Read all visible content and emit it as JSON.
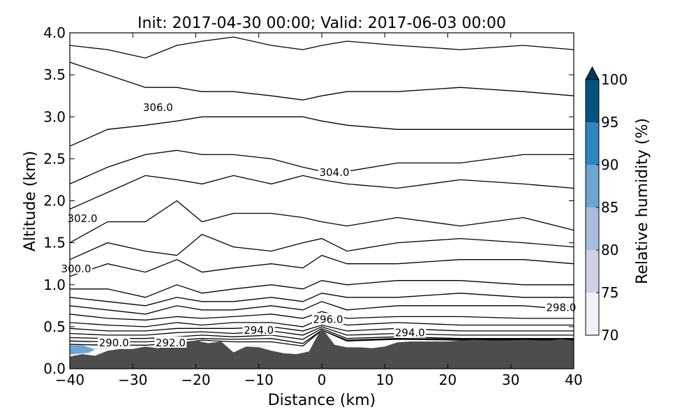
{
  "chart_data": [
    {
      "type": "contour",
      "title": "Init: 2017-04-30 00:00; Valid: 2017-06-03 00:00",
      "xlabel": "Distance (km)",
      "ylabel": "Altitude (km)",
      "xlim": [
        -40,
        40
      ],
      "ylim": [
        0.0,
        4.0
      ],
      "x_ticks": [
        -40,
        -30,
        -20,
        -10,
        0,
        10,
        20,
        30,
        40
      ],
      "x_tick_labels": [
        "−40",
        "−30",
        "−20",
        "−10",
        "0",
        "10",
        "20",
        "30",
        "40"
      ],
      "y_ticks": [
        0.0,
        0.5,
        1.0,
        1.5,
        2.0,
        2.5,
        3.0,
        3.5,
        4.0
      ],
      "y_tick_labels": [
        "0.0",
        "0.5",
        "1.0",
        "1.5",
        "2.0",
        "2.5",
        "3.0",
        "3.5",
        "4.0"
      ],
      "grid": false,
      "terrain": {
        "color": "#4d4d4d",
        "x": [
          -40,
          -38,
          -36,
          -34,
          -32,
          -30,
          -28,
          -26,
          -24,
          -22,
          -20,
          -18,
          -16,
          -14,
          -12,
          -10,
          -8,
          -6,
          -4,
          -2,
          0,
          2,
          4,
          6,
          8,
          10,
          12,
          14,
          16,
          20,
          24,
          28,
          32,
          36,
          38,
          40
        ],
        "height_km": [
          0.14,
          0.17,
          0.15,
          0.21,
          0.23,
          0.23,
          0.26,
          0.24,
          0.27,
          0.3,
          0.33,
          0.3,
          0.32,
          0.19,
          0.26,
          0.25,
          0.21,
          0.18,
          0.17,
          0.2,
          0.48,
          0.28,
          0.25,
          0.25,
          0.24,
          0.26,
          0.31,
          0.32,
          0.32,
          0.32,
          0.34,
          0.33,
          0.34,
          0.33,
          0.35,
          0.33
        ]
      },
      "humidity_patches": [
        {
          "x": [
            -40,
            -37,
            -34,
            -37,
            -40
          ],
          "z": [
            0.15,
            0.18,
            0.25,
            0.32,
            0.33
          ],
          "level": "70-75"
        },
        {
          "x": [
            -40,
            -37,
            -36,
            -38,
            -40
          ],
          "z": [
            0.17,
            0.19,
            0.23,
            0.28,
            0.28
          ],
          "level": "85-90"
        },
        {
          "x": [
            -12,
            -10,
            -8,
            -11
          ],
          "z": [
            0.24,
            0.22,
            0.27,
            0.29
          ],
          "level": "70-75"
        }
      ],
      "contour_series": [
        {
          "z_km": [
            3.85,
            3.8,
            3.7,
            3.85,
            3.9,
            3.95,
            3.85,
            3.8,
            3.85,
            3.9,
            3.85,
            3.8,
            3.85,
            3.8
          ]
        },
        {
          "z_km": [
            3.65,
            3.5,
            3.35,
            3.35,
            3.3,
            3.3,
            3.25,
            3.2,
            3.25,
            3.3,
            3.3,
            3.35,
            3.3,
            3.25
          ],
          "label": "306.0",
          "label_x": -26,
          "label_z": 3.1
        },
        {
          "z_km": [
            2.65,
            2.85,
            2.9,
            2.95,
            3.0,
            3.0,
            3.0,
            3.0,
            2.95,
            2.9,
            2.85,
            2.85,
            2.85,
            2.85
          ]
        },
        {
          "z_km": [
            2.2,
            2.4,
            2.55,
            2.6,
            2.55,
            2.55,
            2.5,
            2.4,
            2.35,
            2.35,
            2.45,
            2.45,
            2.55,
            2.55
          ]
        },
        {
          "z_km": [
            1.9,
            2.1,
            2.3,
            2.25,
            2.2,
            2.3,
            2.2,
            2.3,
            2.25,
            2.2,
            2.15,
            2.25,
            2.2,
            2.15
          ],
          "label": "304.0",
          "label_x": 2,
          "label_z": 2.33
        },
        {
          "z_km": [
            1.5,
            1.75,
            1.75,
            2.0,
            1.75,
            1.85,
            1.85,
            1.8,
            1.75,
            1.7,
            1.8,
            1.7,
            1.8,
            1.65
          ],
          "label": "302.0",
          "label_x": -38,
          "label_z": 1.78
        },
        {
          "z_km": [
            1.3,
            1.5,
            1.4,
            1.35,
            1.6,
            1.45,
            1.4,
            1.5,
            1.55,
            1.4,
            1.5,
            1.55,
            1.5,
            1.45
          ]
        },
        {
          "z_km": [
            1.1,
            1.25,
            1.15,
            1.3,
            1.15,
            1.2,
            1.25,
            1.2,
            1.35,
            1.25,
            1.25,
            1.3,
            1.3,
            1.25
          ],
          "label": "300.0",
          "label_x": -39,
          "label_z": 1.18
        },
        {
          "z_km": [
            0.95,
            0.95,
            0.85,
            1.0,
            0.9,
            0.95,
            1.0,
            0.95,
            1.05,
            1.0,
            1.05,
            1.05,
            1.0,
            1.0
          ]
        },
        {
          "z_km": [
            0.85,
            0.8,
            0.75,
            0.85,
            0.8,
            0.8,
            0.85,
            0.8,
            0.9,
            0.85,
            0.85,
            0.9,
            0.85,
            0.85
          ]
        },
        {
          "z_km": [
            0.75,
            0.7,
            0.65,
            0.75,
            0.7,
            0.7,
            0.75,
            0.7,
            0.8,
            0.7,
            0.75,
            0.75,
            0.75,
            0.7
          ],
          "label": "298.0",
          "label_x": 38,
          "label_z": 0.72
        },
        {
          "z_km": [
            0.65,
            0.6,
            0.58,
            0.62,
            0.6,
            0.62,
            0.65,
            0.6,
            0.68,
            0.6,
            0.62,
            0.62,
            0.6,
            0.6
          ]
        },
        {
          "z_km": [
            0.55,
            0.52,
            0.5,
            0.55,
            0.52,
            0.55,
            0.55,
            0.5,
            0.6,
            0.52,
            0.55,
            0.52,
            0.52,
            0.52
          ],
          "label": "296.0",
          "label_x": 1,
          "label_z": 0.58
        },
        {
          "z_km": [
            0.48,
            0.45,
            0.45,
            0.48,
            0.48,
            0.48,
            0.5,
            0.45,
            0.52,
            0.45,
            0.48,
            0.45,
            0.45,
            0.45
          ]
        },
        {
          "z_km": [
            0.42,
            0.4,
            0.4,
            0.43,
            0.44,
            0.42,
            0.45,
            0.4,
            0.5,
            0.4,
            0.42,
            0.4,
            0.4,
            0.4
          ],
          "label": "294.0",
          "label_x": -10,
          "label_z": 0.45
        },
        {
          "z_km": [
            0.37,
            0.36,
            0.36,
            0.38,
            0.4,
            0.38,
            0.4,
            0.35,
            0.48,
            0.36,
            0.38,
            0.36,
            0.36,
            0.36
          ],
          "label": "294.0",
          "label_x": 14,
          "label_z": 0.42
        },
        {
          "z_km": [
            0.33,
            0.32,
            0.32,
            0.34,
            0.36,
            0.35,
            0.36,
            0.3,
            0.46,
            0.34,
            0.36,
            0.35,
            0.35,
            0.35
          ],
          "label": "292.0",
          "label_x": -24,
          "label_z": 0.3
        },
        {
          "z_km": [
            0.29,
            0.28,
            0.28,
            0.3,
            0.34,
            0.32,
            0.32,
            0.27,
            0.46,
            0.33,
            0.35,
            0.34,
            0.34,
            0.34
          ],
          "label": "290.0",
          "label_x": -33,
          "label_z": 0.3
        }
      ],
      "contour_x": [
        -40,
        -34,
        -28,
        -23,
        -19,
        -14,
        -8,
        -3,
        0,
        4,
        12,
        22,
        32,
        40
      ]
    },
    {
      "type": "colorbar",
      "label": "Relative humidity (%)",
      "ticks": [
        70,
        75,
        80,
        85,
        90,
        95,
        100
      ],
      "tick_labels": [
        "70",
        "75",
        "80",
        "85",
        "90",
        "95",
        "100"
      ],
      "bands": [
        {
          "from": 70,
          "to": 75,
          "color": "#f2eff7"
        },
        {
          "from": 75,
          "to": 80,
          "color": "#ced0e6"
        },
        {
          "from": 80,
          "to": 85,
          "color": "#a7bddb"
        },
        {
          "from": 85,
          "to": 90,
          "color": "#6fa5d1"
        },
        {
          "from": 90,
          "to": 95,
          "color": "#2f86bf"
        },
        {
          "from": 95,
          "to": 100,
          "color": "#05527f"
        },
        {
          "from": 100,
          "to": "max",
          "color": "#023858",
          "extend": true
        }
      ]
    }
  ]
}
